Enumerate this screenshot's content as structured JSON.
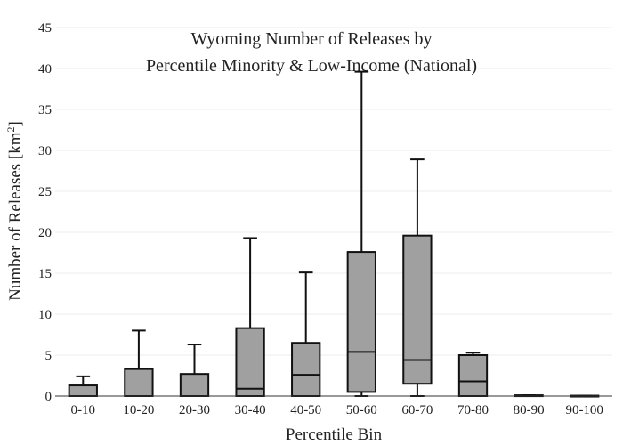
{
  "chart_data": {
    "type": "box",
    "title_line1": "Wyoming Number of Releases by",
    "title_line2": "Percentile Minority & Low-Income (National)",
    "xlabel": "Percentile Bin",
    "ylabel_main": "Number of Releases  [km",
    "ylabel_sup": "2",
    "ylabel_close": "]",
    "ylim": [
      0,
      45
    ],
    "yticks": [
      0,
      5,
      10,
      15,
      20,
      25,
      30,
      35,
      40,
      45
    ],
    "grid": true,
    "box_color": "#a0a0a0",
    "categories": [
      "0-10",
      "10-20",
      "20-30",
      "30-40",
      "40-50",
      "50-60",
      "60-70",
      "70-80",
      "80-90",
      "90-100"
    ],
    "boxes": [
      {
        "min": 0,
        "q1": 0,
        "median": 0,
        "q3": 1.3,
        "max": 2.4
      },
      {
        "min": 0,
        "q1": 0,
        "median": 0,
        "q3": 3.3,
        "max": 8.0
      },
      {
        "min": 0,
        "q1": 0,
        "median": 0,
        "q3": 2.7,
        "max": 6.3
      },
      {
        "min": 0,
        "q1": 0,
        "median": 0.9,
        "q3": 8.3,
        "max": 19.3
      },
      {
        "min": 0,
        "q1": 0,
        "median": 2.6,
        "q3": 6.5,
        "max": 15.1
      },
      {
        "min": 0,
        "q1": 0.5,
        "median": 5.4,
        "q3": 17.6,
        "max": 39.6
      },
      {
        "min": 0,
        "q1": 1.5,
        "median": 4.4,
        "q3": 19.6,
        "max": 28.9
      },
      {
        "min": 0,
        "q1": 0,
        "median": 1.8,
        "q3": 5.0,
        "max": 5.3
      },
      {
        "min": 0,
        "q1": 0,
        "median": 0,
        "q3": 0.1,
        "max": 0.1
      },
      {
        "min": 0,
        "q1": 0,
        "median": 0,
        "q3": 0.05,
        "max": 0.05
      }
    ]
  }
}
